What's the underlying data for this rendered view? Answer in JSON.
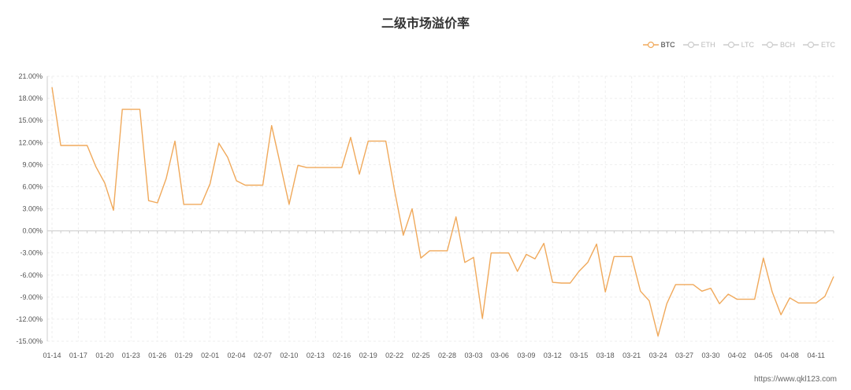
{
  "chart_data": {
    "type": "line",
    "title": "二级市场溢价率",
    "legend": [
      "BTC",
      "ETH",
      "LTC",
      "BCH",
      "ETC"
    ],
    "active_series": "BTC",
    "colors": {
      "line": "#f0a95b",
      "inactive": "#cccccc",
      "axis": "#cccccc",
      "grid": "#eeeeee"
    },
    "ylim": [
      -15,
      21
    ],
    "y_ticks": [
      "21.00%",
      "18.00%",
      "15.00%",
      "12.00%",
      "9.00%",
      "6.00%",
      "3.00%",
      "0.00%",
      "-3.00%",
      "-6.00%",
      "-9.00%",
      "-12.00%",
      "-15.00%"
    ],
    "x_ticks": [
      "01-14",
      "01-17",
      "01-20",
      "01-23",
      "01-26",
      "01-29",
      "02-01",
      "02-04",
      "02-07",
      "02-10",
      "02-13",
      "02-16",
      "02-19",
      "02-22",
      "02-25",
      "02-28",
      "03-03",
      "03-06",
      "03-09",
      "03-12",
      "03-15",
      "03-18",
      "03-21",
      "03-24",
      "03-27",
      "03-30",
      "04-02",
      "04-05",
      "04-08",
      "04-11"
    ],
    "grid": true,
    "legend_position": "top-right",
    "series": [
      {
        "name": "BTC",
        "values": [
          19.5,
          11.6,
          11.6,
          11.6,
          11.6,
          8.7,
          6.5,
          2.8,
          16.5,
          16.5,
          16.5,
          4.1,
          3.8,
          7.1,
          12.2,
          3.6,
          3.6,
          3.6,
          6.4,
          11.9,
          10.0,
          6.8,
          6.2,
          6.2,
          6.2,
          14.3,
          9.0,
          3.6,
          8.9,
          8.6,
          8.6,
          8.6,
          8.6,
          8.6,
          12.7,
          7.7,
          12.2,
          12.2,
          12.2,
          5.5,
          -0.6,
          3.0,
          -3.7,
          -2.7,
          -2.7,
          -2.7,
          1.9,
          -4.3,
          -3.6,
          -11.9,
          -3.0,
          -3.0,
          -3.0,
          -5.5,
          -3.2,
          -3.8,
          -1.7,
          -7.0,
          -7.1,
          -7.1,
          -5.5,
          -4.3,
          -1.8,
          -8.3,
          -3.5,
          -3.5,
          -3.5,
          -8.2,
          -9.5,
          -14.3,
          -9.9,
          -7.3,
          -7.3,
          -7.3,
          -8.2,
          -7.8,
          -9.9,
          -8.6,
          -9.3,
          -9.3,
          -9.3,
          -3.7,
          -8.3,
          -11.4,
          -9.1,
          -9.8,
          -9.8,
          -9.8,
          -8.9,
          -6.2
        ]
      }
    ]
  },
  "watermark": "https://www.qkl123.com"
}
